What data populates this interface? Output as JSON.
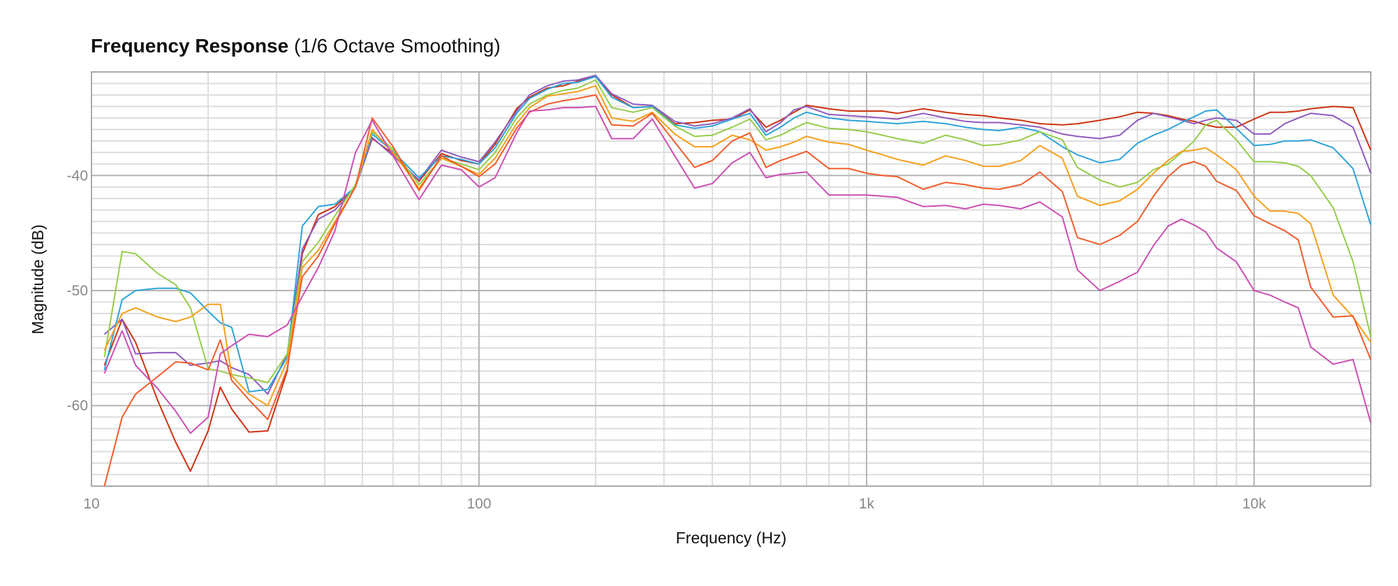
{
  "chart_data": {
    "type": "line",
    "title": "Frequency Response",
    "subtitle": "(1/6 Octave Smoothing)",
    "xlabel": "Frequency (Hz)",
    "ylabel": "Magnitude (dB)",
    "x_scale": "log",
    "xlim": [
      10,
      20000
    ],
    "ylim": [
      -67,
      -31
    ],
    "x_ticks": [
      {
        "value": 10,
        "label": "10"
      },
      {
        "value": 100,
        "label": "100"
      },
      {
        "value": 1000,
        "label": "1k"
      },
      {
        "value": 10000,
        "label": "10k"
      }
    ],
    "y_ticks": [
      {
        "value": -40,
        "label": "-40"
      },
      {
        "value": -50,
        "label": "-50"
      },
      {
        "value": -60,
        "label": "-60"
      }
    ],
    "grid": true,
    "legend": "none",
    "x": [
      10.8,
      12,
      13,
      14.8,
      16.5,
      18,
      20,
      21.5,
      23,
      25.5,
      28.5,
      32,
      35,
      38.5,
      42.5,
      48,
      53,
      60,
      70,
      80,
      90,
      100,
      110,
      125,
      135,
      150,
      165,
      180,
      200,
      220,
      250,
      280,
      320,
      360,
      400,
      450,
      500,
      550,
      600,
      650,
      700,
      800,
      900,
      1000,
      1100,
      1200,
      1400,
      1600,
      1800,
      2000,
      2200,
      2500,
      2800,
      3200,
      3500,
      4000,
      4500,
      5000,
      5500,
      6000,
      6500,
      7000,
      7500,
      8000,
      9000,
      10000,
      11000,
      12000,
      13000,
      14000,
      16000,
      18000,
      20000
    ],
    "series": [
      {
        "color": "#cc3311",
        "values": [
          -56.5,
          -52.5,
          -54.5,
          -59.5,
          -63.2,
          -65.7,
          -62.2,
          -58.4,
          -60.3,
          -62.3,
          -62.2,
          -57,
          -46.8,
          -43.4,
          -42.7,
          -41,
          -36.8,
          -38.1,
          -40.5,
          -38.1,
          -38.7,
          -39,
          -37.3,
          -34.2,
          -33.2,
          -32.4,
          -32.2,
          -31.8,
          -31.4,
          -33,
          -34.1,
          -34,
          -35.5,
          -35.4,
          -35.2,
          -35.1,
          -34.3,
          -35.8,
          -35.2,
          -34.5,
          -33.9,
          -34.2,
          -34.4,
          -34.4,
          -34.4,
          -34.6,
          -34.2,
          -34.5,
          -34.7,
          -34.8,
          -35,
          -35.2,
          -35.5,
          -35.6,
          -35.5,
          -35.2,
          -34.9,
          -34.5,
          -34.6,
          -34.8,
          -35.1,
          -35.3,
          -35.6,
          -35.8,
          -35.8,
          -35.1,
          -34.5,
          -34.5,
          -34.4,
          -34.2,
          -34,
          -34.1,
          -37.8
        ]
      },
      {
        "color": "#8f5bbd",
        "values": [
          -53.8,
          -52.5,
          -55.5,
          -55.4,
          -55.4,
          -56.5,
          -56.3,
          -56.1,
          -56.7,
          -57.3,
          -59,
          -55.5,
          -46.4,
          -43.8,
          -43,
          -41,
          -36.7,
          -38.3,
          -40.4,
          -37.8,
          -38.4,
          -38.8,
          -37.1,
          -34.4,
          -33,
          -32.2,
          -31.8,
          -31.7,
          -31.3,
          -32.9,
          -33.8,
          -33.9,
          -35.3,
          -35.7,
          -35.5,
          -35,
          -34.2,
          -36.2,
          -35.4,
          -34.3,
          -34,
          -34.7,
          -34.8,
          -34.9,
          -35,
          -35.1,
          -34.6,
          -35,
          -35.3,
          -35.4,
          -35.4,
          -35.6,
          -35.8,
          -36.4,
          -36.6,
          -36.8,
          -36.5,
          -35.2,
          -34.6,
          -34.9,
          -35.2,
          -35.5,
          -35.2,
          -35,
          -35.2,
          -36.4,
          -36.4,
          -35.5,
          -35,
          -34.6,
          -34.8,
          -35.8,
          -39.8
        ]
      },
      {
        "color": "#2ea3d9",
        "values": [
          -56.9,
          -50.8,
          -50,
          -49.8,
          -49.8,
          -50.2,
          -51.8,
          -52.8,
          -53.2,
          -58.8,
          -58.6,
          -55.8,
          -44.4,
          -42.7,
          -42.5,
          -41,
          -36.4,
          -37.9,
          -40.2,
          -38.3,
          -38.6,
          -39,
          -37.6,
          -34.6,
          -33.3,
          -32.5,
          -32,
          -31.9,
          -31.4,
          -33.2,
          -34.1,
          -34,
          -35.6,
          -35.9,
          -35.7,
          -35.1,
          -34.6,
          -36.5,
          -35.8,
          -35,
          -34.5,
          -35,
          -35.2,
          -35.3,
          -35.4,
          -35.5,
          -35.3,
          -35.5,
          -35.8,
          -36,
          -36.1,
          -35.8,
          -36.2,
          -37.5,
          -38.2,
          -38.9,
          -38.6,
          -37.2,
          -36.5,
          -36,
          -35.4,
          -34.9,
          -34.4,
          -34.3,
          -35.9,
          -37.4,
          -37.3,
          -37,
          -37,
          -36.9,
          -37.6,
          -39.4,
          -44.3
        ]
      },
      {
        "color": "#96cc4a",
        "values": [
          -55.8,
          -46.6,
          -46.8,
          -48.5,
          -49.5,
          -51.5,
          -56.8,
          -57,
          -57.3,
          -57.6,
          -58,
          -55.5,
          -47.5,
          -45.8,
          -43.5,
          -40.8,
          -36.2,
          -37.7,
          -40.8,
          -38.5,
          -39,
          -39.5,
          -38,
          -35,
          -33.8,
          -33,
          -32.6,
          -32.4,
          -31.7,
          -34.1,
          -34.5,
          -34.1,
          -35.7,
          -36.6,
          -36.5,
          -35.8,
          -35.1,
          -36.9,
          -36.5,
          -35.9,
          -35.4,
          -35.9,
          -36,
          -36.2,
          -36.5,
          -36.8,
          -37.2,
          -36.5,
          -36.9,
          -37.4,
          -37.3,
          -36.9,
          -36.2,
          -36.9,
          -39.3,
          -40.4,
          -41,
          -40.6,
          -39.5,
          -39,
          -38,
          -37,
          -35.6,
          -35.2,
          -36.9,
          -38.8,
          -38.8,
          -38.9,
          -39.2,
          -40,
          -42.8,
          -47.5,
          -54
        ]
      },
      {
        "color": "#f5a01c",
        "values": [
          -55.2,
          -52,
          -51.5,
          -52.3,
          -52.7,
          -52.3,
          -51.2,
          -51.2,
          -57.4,
          -59,
          -60,
          -56.1,
          -48,
          -46.5,
          -44,
          -41,
          -36,
          -38,
          -41.1,
          -38.5,
          -39.2,
          -39.9,
          -38.5,
          -35.5,
          -34.1,
          -33.1,
          -32.9,
          -32.7,
          -32.2,
          -35,
          -35.3,
          -34.5,
          -36.4,
          -37.5,
          -37.5,
          -36.5,
          -36.9,
          -37.8,
          -37.5,
          -37.1,
          -36.6,
          -37.1,
          -37.3,
          -37.8,
          -38.2,
          -38.6,
          -39.1,
          -38.3,
          -38.7,
          -39.2,
          -39.2,
          -38.7,
          -37.4,
          -38.5,
          -41.8,
          -42.6,
          -42.2,
          -41.2,
          -39.8,
          -38.7,
          -37.9,
          -37.8,
          -37.6,
          -38.2,
          -39.5,
          -41.8,
          -43.1,
          -43.1,
          -43.3,
          -44.2,
          -50.4,
          -52.3,
          -54.5
        ]
      },
      {
        "color": "#f25c2b",
        "values": [
          -67,
          -61,
          -59,
          -57.5,
          -56.2,
          -56.3,
          -56.9,
          -54.3,
          -57.8,
          -59.5,
          -61.2,
          -56.8,
          -48.8,
          -47,
          -44.2,
          -41,
          -35,
          -37.5,
          -41.3,
          -38.3,
          -39.2,
          -40.1,
          -39,
          -35.9,
          -34.5,
          -33.8,
          -33.5,
          -33.3,
          -33,
          -35.6,
          -35.7,
          -34.6,
          -37.1,
          -39.3,
          -38.7,
          -37,
          -36.3,
          -39.3,
          -38.7,
          -38.3,
          -37.9,
          -39.4,
          -39.4,
          -39.8,
          -40,
          -40.1,
          -41.2,
          -40.6,
          -40.8,
          -41.1,
          -41.2,
          -40.8,
          -39.7,
          -41.4,
          -45.4,
          -46,
          -45.2,
          -44,
          -41.8,
          -40.1,
          -39.1,
          -38.8,
          -39.2,
          -40.5,
          -41.3,
          -43.5,
          -44.2,
          -44.8,
          -45.6,
          -49.7,
          -52.3,
          -52.2,
          -56
        ]
      },
      {
        "color": "#cc4fb2",
        "values": [
          -57.2,
          -53.5,
          -56.5,
          -58.5,
          -60.5,
          -62.4,
          -61,
          -55.5,
          -54.8,
          -53.8,
          -54,
          -53,
          -50.5,
          -48,
          -44.8,
          -38,
          -35.2,
          -38.3,
          -42.1,
          -39.1,
          -39.5,
          -41,
          -40.2,
          -36.3,
          -34.4,
          -34.3,
          -34.1,
          -34.1,
          -34,
          -36.8,
          -36.8,
          -35.1,
          -38.3,
          -41.1,
          -40.7,
          -38.9,
          -38,
          -40.2,
          -39.9,
          -39.8,
          -39.7,
          -41.7,
          -41.7,
          -41.7,
          -41.8,
          -41.9,
          -42.7,
          -42.6,
          -42.9,
          -42.5,
          -42.6,
          -42.9,
          -42.3,
          -43.6,
          -48.2,
          -50,
          -49.2,
          -48.4,
          -46.1,
          -44.4,
          -43.8,
          -44.3,
          -44.9,
          -46.3,
          -47.5,
          -50,
          -50.4,
          -51,
          -51.5,
          -54.9,
          -56.4,
          -56,
          -61.5
        ]
      }
    ]
  }
}
